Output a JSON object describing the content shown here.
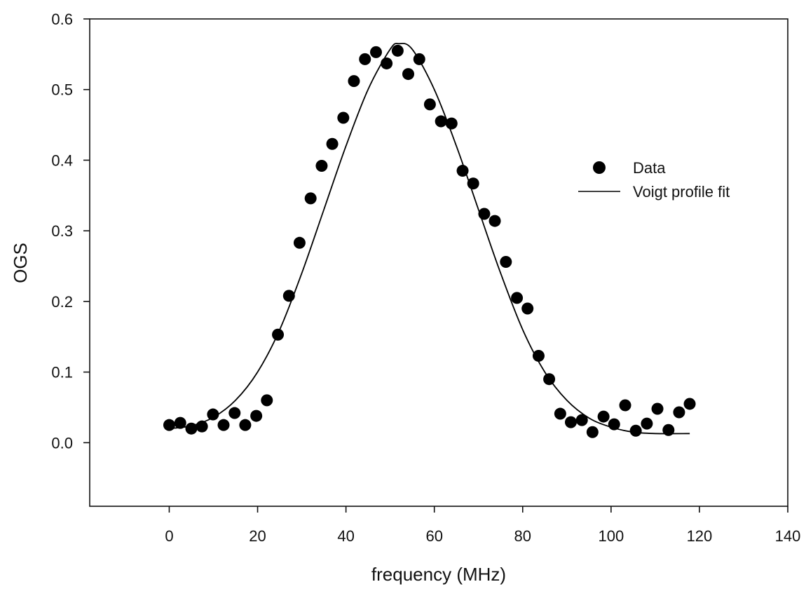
{
  "chart_data": {
    "type": "scatter",
    "title": "",
    "xlabel": "frequency (MHz)",
    "ylabel": "OGS",
    "xlim": [
      -18,
      140
    ],
    "ylim": [
      -0.09,
      0.6
    ],
    "xticks": [
      0,
      20,
      40,
      60,
      80,
      100,
      120,
      140
    ],
    "yticks": [
      0.0,
      0.1,
      0.2,
      0.3,
      0.4,
      0.5,
      0.6
    ],
    "ytick_labels": [
      "0.0",
      "0.1",
      "0.2",
      "0.3",
      "0.4",
      "0.5",
      "0.6"
    ],
    "grid": false,
    "legend_position": "right",
    "series": [
      {
        "name": "Data",
        "kind": "scatter",
        "marker": "filled-circle",
        "color": "#000000",
        "x": [
          0,
          2.5,
          5,
          7.4,
          9.9,
          12.3,
          14.8,
          17.2,
          19.7,
          22.1,
          24.6,
          27.1,
          29.5,
          32,
          34.5,
          36.9,
          39.4,
          41.8,
          44.3,
          46.8,
          49.2,
          51.7,
          54.1,
          56.6,
          59,
          61.5,
          63.9,
          66.4,
          68.8,
          71.3,
          73.7,
          76.2,
          78.7,
          81.1,
          83.6,
          86,
          88.5,
          90.9,
          93.4,
          95.8,
          98.3,
          100.7,
          103.2,
          105.6,
          108.1,
          110.5,
          113,
          115.4,
          117.8
        ],
        "y": [
          0.025,
          0.028,
          0.02,
          0.023,
          0.04,
          0.025,
          0.042,
          0.025,
          0.038,
          0.06,
          0.153,
          0.208,
          0.283,
          0.346,
          0.392,
          0.423,
          0.46,
          0.512,
          0.543,
          0.553,
          0.537,
          0.555,
          0.522,
          0.543,
          0.479,
          0.455,
          0.452,
          0.385,
          0.367,
          0.324,
          0.314,
          0.256,
          0.205,
          0.19,
          0.123,
          0.09,
          0.041,
          0.029,
          0.032,
          0.015,
          0.037,
          0.026,
          0.053,
          0.017,
          0.027,
          0.048,
          0.018,
          0.043,
          0.055
        ]
      },
      {
        "name": "Voigt profile fit",
        "kind": "line",
        "color": "#000000",
        "x": [
          0,
          5,
          10,
          15,
          20,
          25,
          30,
          35,
          40,
          45,
          50,
          52,
          55,
          60,
          65,
          70,
          75,
          80,
          85,
          90,
          95,
          100,
          105,
          110,
          117.8
        ],
        "y": [
          0.02,
          0.024,
          0.036,
          0.06,
          0.1,
          0.16,
          0.24,
          0.33,
          0.42,
          0.5,
          0.557,
          0.565,
          0.557,
          0.5,
          0.42,
          0.33,
          0.24,
          0.16,
          0.1,
          0.06,
          0.035,
          0.022,
          0.015,
          0.013,
          0.013
        ]
      }
    ]
  }
}
